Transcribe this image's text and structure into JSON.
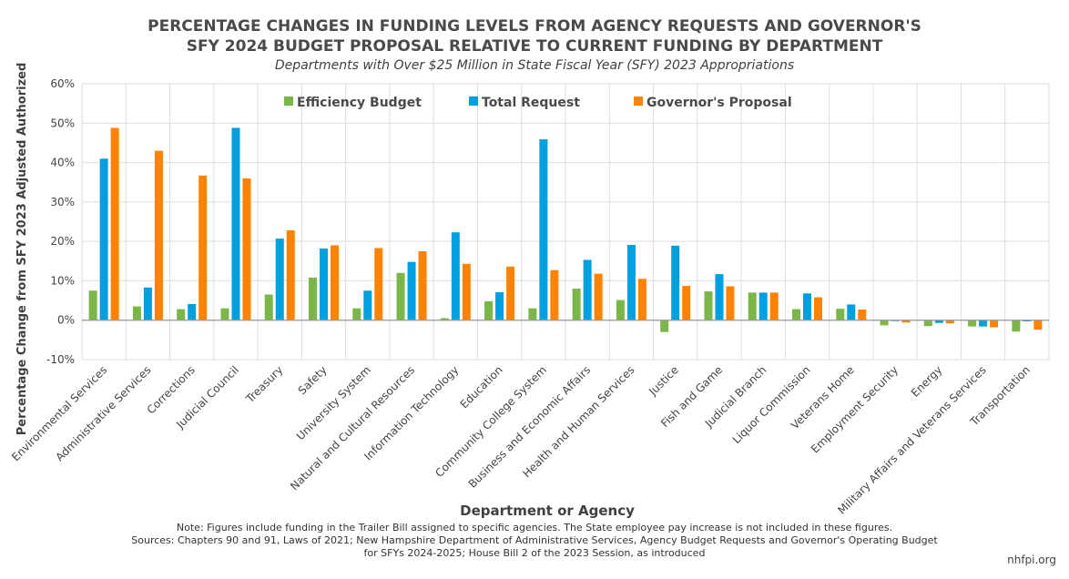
{
  "title_line1": "PERCENTAGE CHANGES IN FUNDING LEVELS FROM AGENCY REQUESTS AND GOVERNOR'S",
  "title_line2": "SFY 2024 BUDGET PROPOSAL RELATIVE TO CURRENT FUNDING BY DEPARTMENT",
  "subtitle": "Departments with Over $25 Million in State Fiscal Year (SFY) 2023 Appropriations",
  "notes": {
    "line1": "Note: Figures include funding in the Trailer Bill assigned to specific agencies. The State employee pay increase is not included in these figures.",
    "line2": "Sources: Chapters 90 and 91, Laws of 2021; New Hampshire Department of Administrative Services, Agency Budget Requests and Governor's Operating Budget",
    "line3": "for SFYs 2024-2025; House Bill 2 of the 2023 Session, as introduced"
  },
  "brand": "nhfpi.org",
  "chart_data": {
    "type": "bar",
    "title": "PERCENTAGE CHANGES IN FUNDING LEVELS FROM AGENCY REQUESTS AND GOVERNOR'S SFY 2024 BUDGET PROPOSAL RELATIVE TO CURRENT FUNDING BY DEPARTMENT",
    "xlabel": "Department or Agency",
    "ylabel": "Percentage Change from SFY 2023 Adjusted Authorized",
    "ylim": [
      -10,
      60
    ],
    "yticks": [
      -10,
      0,
      10,
      20,
      30,
      40,
      50,
      60
    ],
    "ytick_labels": [
      "-10%",
      "0%",
      "10%",
      "20%",
      "30%",
      "40%",
      "50%",
      "60%"
    ],
    "grid": true,
    "legend_position": "top",
    "categories": [
      "Environmental Services",
      "Administrative Services",
      "Corrections",
      "Judicial Council",
      "Treasury",
      "Safety",
      "University System",
      "Natural and Cultural Resources",
      "Information Technology",
      "Education",
      "Community College System",
      "Business and Economic Affairs",
      "Health and Human Services",
      "Justice",
      "Fish and Game",
      "Judicial Branch",
      "Liquor Commission",
      "Veterans Home",
      "Employment Security",
      "Energy",
      "Military Affairs and Veterans Services",
      "Transportation"
    ],
    "series": [
      {
        "name": "Efficiency Budget",
        "color": "#7ab648",
        "values": [
          7.5,
          3.5,
          2.8,
          3.0,
          6.5,
          10.8,
          3.0,
          12.0,
          0.5,
          4.8,
          3.0,
          8.0,
          5.1,
          -3.0,
          7.3,
          7.0,
          2.8,
          2.9,
          -1.3,
          -1.5,
          -1.6,
          -2.9
        ]
      },
      {
        "name": "Total Request",
        "color": "#009fdf",
        "values": [
          41.0,
          8.3,
          4.1,
          48.8,
          20.7,
          18.2,
          7.5,
          14.8,
          22.3,
          7.1,
          45.9,
          15.3,
          19.1,
          18.9,
          11.7,
          7.0,
          6.8,
          4.0,
          -0.2,
          -0.7,
          -1.6,
          -0.3
        ]
      },
      {
        "name": "Governor's Proposal",
        "color": "#ff8200",
        "values": [
          48.8,
          43.0,
          36.7,
          36.0,
          22.8,
          19.0,
          18.3,
          17.5,
          14.3,
          13.6,
          12.7,
          11.8,
          10.5,
          8.7,
          8.6,
          7.0,
          5.8,
          2.7,
          -0.6,
          -0.8,
          -1.8,
          -2.4
        ]
      }
    ]
  }
}
